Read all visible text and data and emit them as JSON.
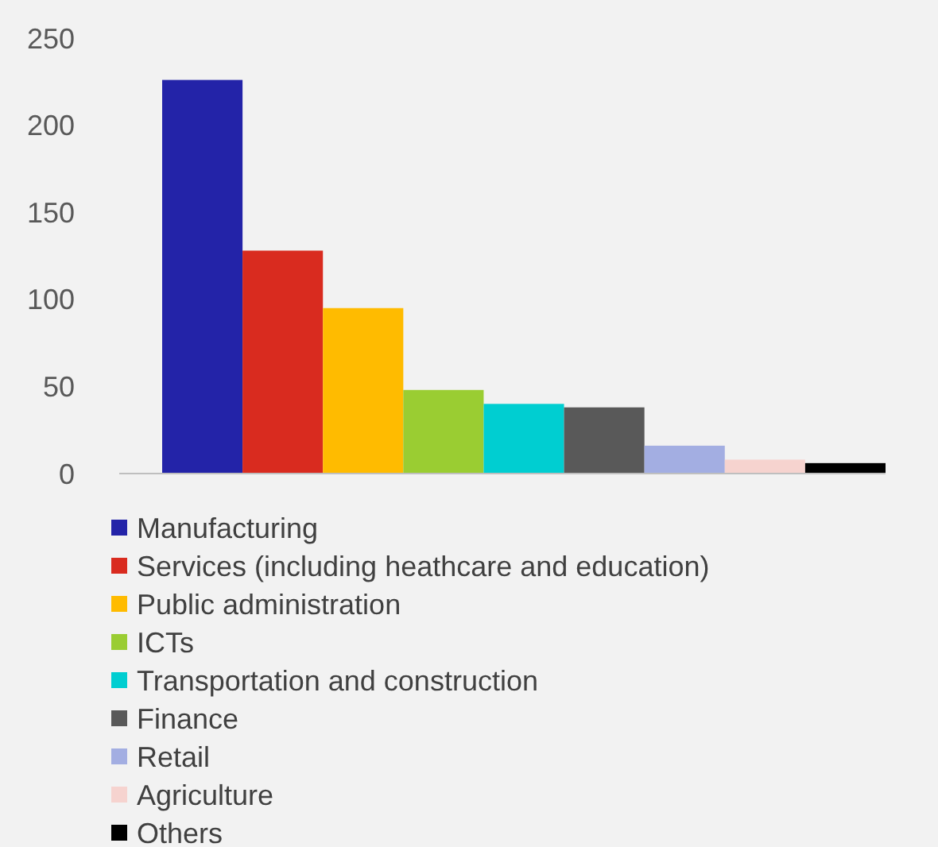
{
  "chart_data": {
    "type": "bar",
    "categories": [
      null
    ],
    "series": [
      {
        "name": "Manufacturing",
        "color": "#2323a8",
        "values": [
          226
        ]
      },
      {
        "name": "Services (including heathcare and education)",
        "color": "#d92b1f",
        "values": [
          128
        ]
      },
      {
        "name": "Public administration",
        "color": "#ffbb00",
        "values": [
          95
        ]
      },
      {
        "name": "ICTs",
        "color": "#9acd32",
        "values": [
          48
        ]
      },
      {
        "name": "Transportation and construction",
        "color": "#00ced1",
        "values": [
          40
        ]
      },
      {
        "name": "Finance",
        "color": "#595959",
        "values": [
          38
        ]
      },
      {
        "name": "Retail",
        "color": "#a3aee2",
        "values": [
          16
        ]
      },
      {
        "name": "Agriculture",
        "color": "#f6d3cf",
        "values": [
          8
        ]
      },
      {
        "name": "Others",
        "color": "#000000",
        "values": [
          6
        ]
      }
    ],
    "ylim": [
      0,
      250
    ],
    "yticks": [
      0,
      50,
      100,
      150,
      200,
      250
    ],
    "grid": false,
    "legend": "bottom",
    "tick_labels": "y"
  }
}
